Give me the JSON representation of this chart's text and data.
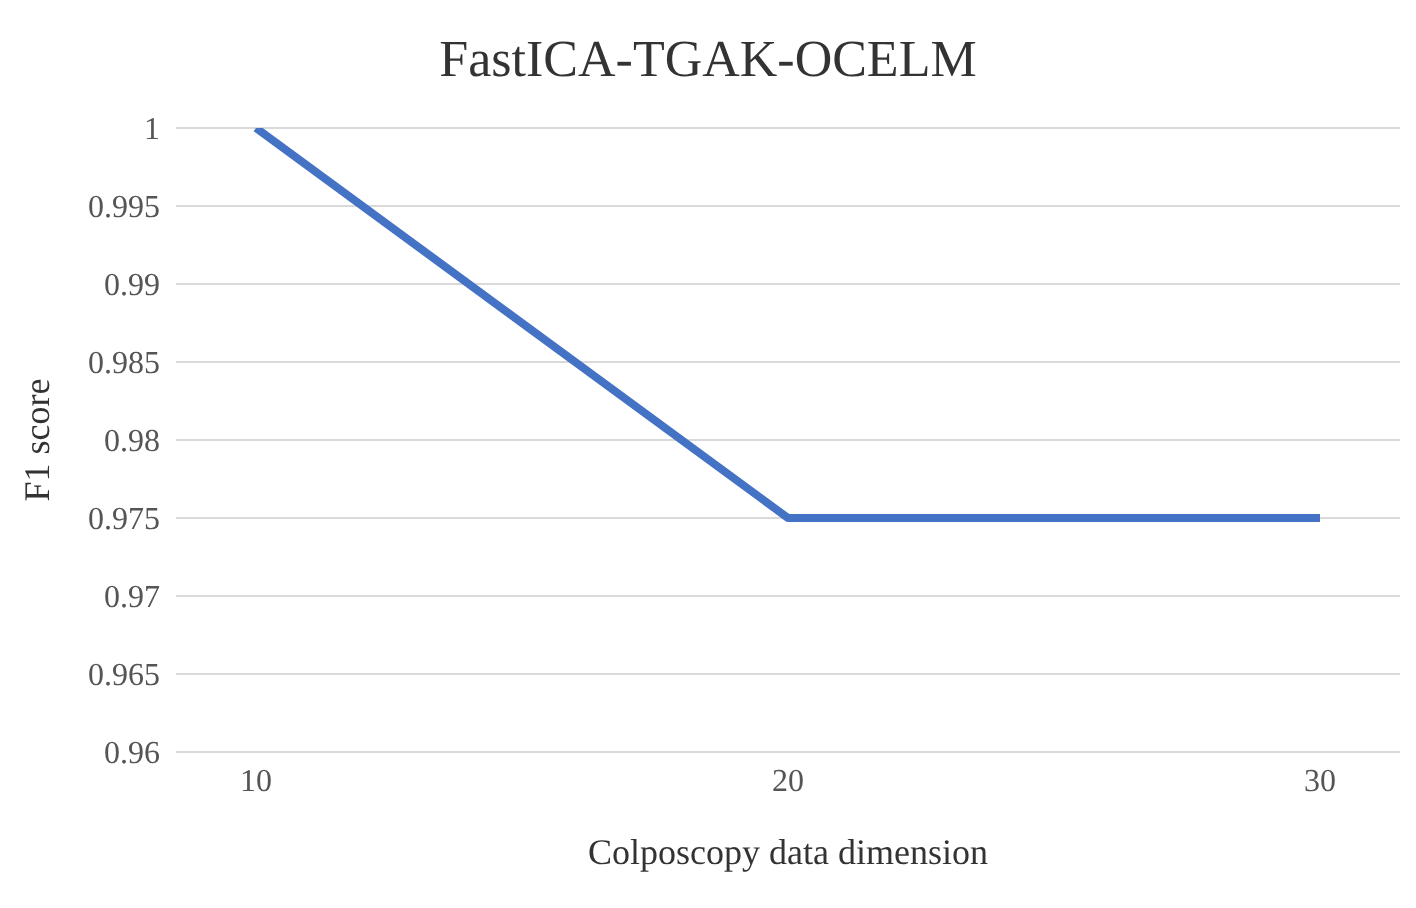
{
  "chart_data": {
    "type": "line",
    "title": "FastICA-TGAK-OCELM",
    "xlabel": "Colposcopy data dimension",
    "ylabel": "F1 score",
    "categories": [
      "10",
      "20",
      "30"
    ],
    "series": [
      {
        "color": "#4472c4",
        "values": [
          1,
          0.975,
          0.975
        ]
      }
    ],
    "ylim": [
      0.96,
      1
    ],
    "yticks": [
      0.96,
      0.965,
      0.97,
      0.975,
      0.98,
      0.985,
      0.99,
      0.995,
      1
    ],
    "grid": "y",
    "legend": false,
    "marker": "none",
    "line_style": "solid"
  }
}
